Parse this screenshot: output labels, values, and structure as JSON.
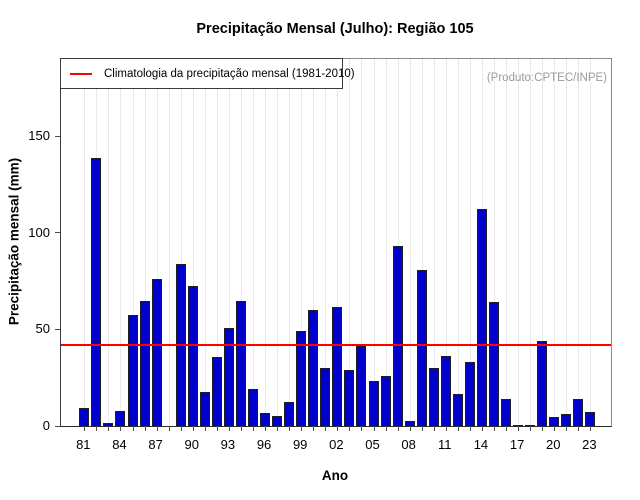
{
  "title": "Precipitação Mensal (Julho): Região 105",
  "annotations": {
    "produto": "(Produto:CPTEC/INPE)"
  },
  "legend": {
    "label": "Climatologia da precipitação mensal (1981-2010)",
    "line_color": "#ff0000"
  },
  "axes": {
    "x_label": "Ano",
    "y_label": "Precipitação mensal (mm)"
  },
  "chart_data": {
    "type": "bar",
    "title": "Precipitação Mensal (Julho): Região 105",
    "xlabel": "Ano",
    "ylabel": "Precipitação mensal (mm)",
    "categories": [
      "81",
      "82",
      "83",
      "84",
      "85",
      "86",
      "87",
      "88",
      "89",
      "90",
      "91",
      "92",
      "93",
      "94",
      "95",
      "96",
      "97",
      "98",
      "99",
      "00",
      "01",
      "02",
      "03",
      "04",
      "05",
      "06",
      "07",
      "08",
      "09",
      "10",
      "11",
      "12",
      "13",
      "14",
      "15",
      "16",
      "17",
      "18",
      "19",
      "20",
      "21",
      "22",
      "23"
    ],
    "values": [
      9.5,
      139,
      1.5,
      8,
      57.5,
      64.5,
      76,
      0,
      84,
      72.5,
      17.5,
      35.5,
      50.5,
      64.5,
      19,
      6.5,
      5,
      12.5,
      49,
      60,
      30,
      61.5,
      29,
      41.5,
      23.5,
      26,
      93,
      2.5,
      81,
      30,
      36,
      16.5,
      33,
      112.5,
      64,
      14,
      0.4,
      0.4,
      44,
      4.5,
      6,
      14,
      7
    ],
    "labeled_ticks": [
      "81",
      "84",
      "87",
      "90",
      "93",
      "96",
      "99",
      "02",
      "05",
      "08",
      "11",
      "14",
      "17",
      "20",
      "23"
    ],
    "y_ticks": [
      0,
      50,
      100,
      150
    ],
    "ylim": [
      0,
      190
    ],
    "bar_color": "#0101cd",
    "climatology_line": {
      "value": 42,
      "color": "#ff0000",
      "period": "1981-2010"
    },
    "grid": "vertical-dotted",
    "legend_position": "top-left",
    "legend_label": "Climatologia da precipitação mensal (1981-2010)"
  }
}
